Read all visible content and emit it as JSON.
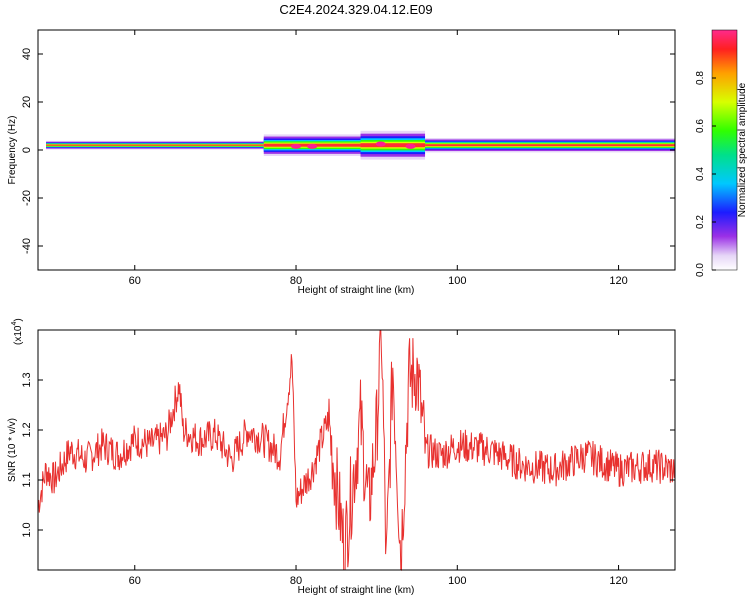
{
  "title": "C2E4.2024.329.04.12.E09",
  "chart_data": [
    {
      "type": "heatmap",
      "xlabel": "Height of straight line (km)",
      "ylabel": "Frequency (Hz)",
      "xlim": [
        48,
        127
      ],
      "ylim": [
        -50,
        50
      ],
      "xticks": [
        60,
        80,
        100,
        120
      ],
      "yticks": [
        -40,
        -20,
        0,
        20,
        40
      ],
      "colorbar": {
        "label": "Normalized spectral amplitude",
        "range": [
          0.0,
          1.0
        ],
        "ticks": [
          "0.0",
          "0.2",
          "0.4",
          "0.6",
          "0.8"
        ]
      },
      "band": {
        "description_freq_hz": 2,
        "segments": [
          {
            "x_start": 49,
            "x_end": 76,
            "half_width_hz": 1.8
          },
          {
            "x_start": 76,
            "x_end": 88,
            "half_width_hz": 4.5
          },
          {
            "x_start": 88,
            "x_end": 96,
            "half_width_hz": 6
          },
          {
            "x_start": 96,
            "x_end": 127,
            "half_width_hz": 3
          }
        ],
        "hot_spots": [
          {
            "x": 80,
            "f": 1.5
          },
          {
            "x": 82,
            "f": 1.5
          },
          {
            "x": 90.5,
            "f": 2.5
          },
          {
            "x": 94.2,
            "f": 1.5
          }
        ]
      }
    },
    {
      "type": "line",
      "xlabel": "Height of straight line (km)",
      "ylabel": "SNR (10 * v/v)",
      "scale_note": "(x10",
      "scale_exp": "4",
      "xlim": [
        48,
        127
      ],
      "ylim": [
        0.92,
        1.4
      ],
      "xticks": [
        60,
        80,
        100,
        120
      ],
      "yticks": [
        "1.0",
        "1.1",
        "1.2",
        "1.3"
      ],
      "series": [
        {
          "color": "#e8312f",
          "x": [
            48,
            49,
            50,
            52,
            54,
            56,
            58,
            60,
            62,
            64,
            65.5,
            66,
            68,
            70,
            72,
            74,
            76,
            78,
            79.5,
            80,
            82,
            84,
            86,
            88,
            89,
            90,
            90.6,
            91.2,
            92,
            93,
            94,
            95,
            96,
            98,
            100,
            104,
            108,
            112,
            116,
            120,
            124,
            127
          ],
          "y": [
            1.05,
            1.12,
            1.1,
            1.16,
            1.14,
            1.17,
            1.15,
            1.18,
            1.17,
            1.19,
            1.29,
            1.2,
            1.18,
            1.19,
            1.14,
            1.2,
            1.18,
            1.15,
            1.34,
            1.06,
            1.12,
            1.22,
            0.96,
            1.22,
            1.04,
            1.2,
            1.4,
            0.92,
            1.33,
            0.95,
            1.3,
            1.32,
            1.16,
            1.15,
            1.17,
            1.16,
            1.13,
            1.12,
            1.15,
            1.12,
            1.13,
            1.12
          ]
        }
      ]
    }
  ]
}
